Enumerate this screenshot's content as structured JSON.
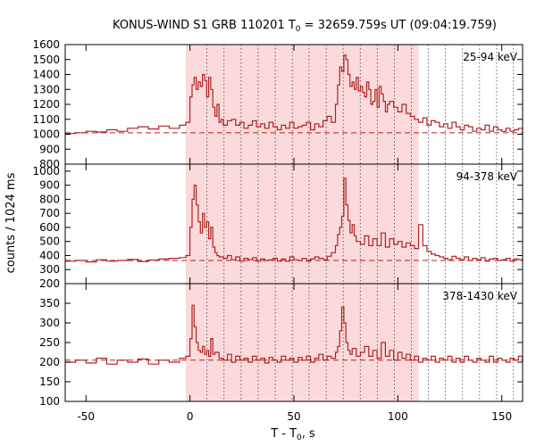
{
  "chart_data": {
    "type": "line",
    "title": {
      "prefix": "KONUS-WIND S1 GRB 110201 T",
      "sub": "0",
      "suffix": " = 32659.759s UT (09:04:19.759)"
    },
    "xlabel": {
      "main": "T - T",
      "sub": "0",
      "tail": ", s"
    },
    "ylabel": "counts / 1024 ms",
    "xlim": [
      -60,
      160
    ],
    "x_ticks": [
      -50,
      0,
      50,
      100,
      150
    ],
    "shaded_interval": [
      -2,
      110
    ],
    "vertical_dotted_lines": [
      8.2,
      16.4,
      24.6,
      32.8,
      41.0,
      49.2,
      57.3,
      65.5,
      73.7,
      81.9,
      90.1,
      98.3,
      106.5,
      114.7,
      122.9,
      131.1,
      139.3,
      147.5,
      155.6
    ],
    "colors": {
      "data": "#b22222",
      "shade": "#fadada",
      "background_level": "#b22222"
    },
    "panels": [
      {
        "name": "25-94 keV",
        "ylim": [
          800,
          1600
        ],
        "yticks": [
          800,
          900,
          1000,
          1100,
          1200,
          1300,
          1400,
          1500,
          1600
        ],
        "background": 1010,
        "x": [
          -60,
          -55,
          -50,
          -45,
          -40,
          -35,
          -30,
          -25,
          -20,
          -15,
          -10,
          -5,
          -2,
          0,
          1,
          2,
          3,
          4,
          5,
          6,
          7,
          8,
          9,
          10,
          11,
          12,
          13,
          14,
          15,
          16,
          18,
          20,
          22,
          24,
          26,
          28,
          30,
          32,
          34,
          36,
          38,
          40,
          42,
          44,
          46,
          48,
          50,
          52,
          54,
          56,
          58,
          60,
          62,
          64,
          66,
          68,
          70,
          71,
          72,
          73,
          74,
          75,
          76,
          77,
          78,
          79,
          80,
          81,
          82,
          83,
          84,
          85,
          86,
          87,
          88,
          89,
          90,
          91,
          92,
          93,
          94,
          95,
          96,
          98,
          100,
          102,
          104,
          106,
          108,
          110,
          112,
          114,
          116,
          118,
          120,
          122,
          124,
          126,
          128,
          130,
          132,
          134,
          136,
          138,
          140,
          142,
          144,
          146,
          148,
          150,
          152,
          154,
          156,
          158,
          160
        ],
        "values": [
          1005,
          1010,
          1020,
          1015,
          1030,
          1020,
          1040,
          1050,
          1035,
          1055,
          1040,
          1060,
          1080,
          1250,
          1330,
          1380,
          1300,
          1350,
          1320,
          1400,
          1360,
          1250,
          1380,
          1300,
          1180,
          1120,
          1200,
          1080,
          1100,
          1060,
          1090,
          1100,
          1060,
          1080,
          1040,
          1060,
          1090,
          1050,
          1070,
          1040,
          1080,
          1050,
          1030,
          1060,
          1040,
          1080,
          1040,
          1050,
          1060,
          1080,
          1030,
          1070,
          1050,
          1090,
          1120,
          1080,
          1200,
          1330,
          1450,
          1420,
          1530,
          1500,
          1400,
          1320,
          1350,
          1300,
          1380,
          1290,
          1320,
          1280,
          1250,
          1350,
          1300,
          1200,
          1220,
          1300,
          1180,
          1320,
          1270,
          1220,
          1150,
          1200,
          1220,
          1180,
          1150,
          1200,
          1140,
          1120,
          1100,
          1080,
          1110,
          1060,
          1090,
          1080,
          1050,
          1070,
          1040,
          1080,
          1050,
          1030,
          1060,
          1050,
          1020,
          1040,
          1030,
          1060,
          1020,
          1050,
          1030,
          1020,
          1040,
          1020,
          1030,
          1040,
          1020
        ]
      },
      {
        "name": "94-378 keV",
        "ylim": [
          200,
          1050
        ],
        "yticks": [
          200,
          300,
          400,
          500,
          600,
          700,
          800,
          900,
          1000
        ],
        "background": 365,
        "x": [
          -60,
          -55,
          -50,
          -45,
          -40,
          -35,
          -30,
          -25,
          -20,
          -15,
          -10,
          -5,
          -2,
          0,
          1,
          2,
          3,
          4,
          5,
          6,
          7,
          8,
          9,
          10,
          11,
          12,
          13,
          14,
          16,
          18,
          20,
          22,
          24,
          26,
          28,
          30,
          32,
          34,
          36,
          38,
          40,
          42,
          44,
          46,
          48,
          50,
          52,
          54,
          56,
          58,
          60,
          62,
          64,
          66,
          68,
          70,
          71,
          72,
          73,
          74,
          75,
          76,
          77,
          78,
          79,
          80,
          82,
          84,
          86,
          88,
          90,
          92,
          94,
          96,
          98,
          100,
          102,
          104,
          106,
          108,
          110,
          112,
          114,
          116,
          118,
          120,
          122,
          124,
          126,
          128,
          130,
          132,
          134,
          136,
          138,
          140,
          142,
          144,
          146,
          148,
          150,
          152,
          154,
          156,
          158,
          160
        ],
        "values": [
          360,
          365,
          355,
          370,
          360,
          365,
          372,
          358,
          368,
          375,
          380,
          385,
          400,
          600,
          800,
          900,
          760,
          640,
          560,
          700,
          600,
          640,
          520,
          600,
          460,
          420,
          400,
          390,
          380,
          400,
          370,
          390,
          360,
          380,
          370,
          385,
          360,
          375,
          365,
          370,
          380,
          360,
          375,
          360,
          390,
          370,
          365,
          380,
          360,
          375,
          390,
          380,
          370,
          395,
          420,
          470,
          550,
          600,
          680,
          950,
          760,
          650,
          560,
          620,
          540,
          500,
          480,
          540,
          470,
          520,
          470,
          560,
          460,
          520,
          480,
          500,
          460,
          490,
          470,
          450,
          620,
          470,
          430,
          410,
          400,
          390,
          380,
          370,
          395,
          380,
          370,
          390,
          365,
          380,
          370,
          385,
          360,
          375,
          380,
          365,
          370,
          380,
          360,
          375,
          370,
          365
        ]
      },
      {
        "name": "378-1430 keV",
        "ylim": [
          100,
          400
        ],
        "yticks": [
          100,
          150,
          200,
          250,
          300,
          350
        ],
        "background": 205,
        "x": [
          -60,
          -55,
          -50,
          -45,
          -40,
          -35,
          -30,
          -25,
          -20,
          -15,
          -10,
          -5,
          -2,
          0,
          1,
          2,
          3,
          4,
          5,
          6,
          7,
          8,
          9,
          10,
          11,
          12,
          14,
          16,
          18,
          20,
          22,
          24,
          26,
          28,
          30,
          32,
          34,
          36,
          38,
          40,
          42,
          44,
          46,
          48,
          50,
          52,
          54,
          56,
          58,
          60,
          62,
          64,
          66,
          68,
          70,
          71,
          72,
          73,
          74,
          75,
          76,
          77,
          78,
          80,
          82,
          84,
          86,
          88,
          90,
          92,
          94,
          96,
          98,
          100,
          102,
          104,
          106,
          108,
          110,
          112,
          114,
          116,
          118,
          120,
          122,
          124,
          126,
          128,
          130,
          132,
          134,
          136,
          138,
          140,
          142,
          144,
          146,
          148,
          150,
          152,
          154,
          156,
          158,
          160
        ],
        "values": [
          200,
          205,
          198,
          210,
          195,
          205,
          200,
          208,
          195,
          205,
          200,
          210,
          215,
          260,
          345,
          290,
          250,
          230,
          225,
          240,
          220,
          230,
          215,
          260,
          220,
          225,
          210,
          205,
          220,
          200,
          215,
          205,
          210,
          200,
          215,
          205,
          210,
          198,
          212,
          205,
          200,
          215,
          205,
          210,
          200,
          212,
          205,
          215,
          200,
          210,
          220,
          205,
          215,
          210,
          225,
          240,
          280,
          340,
          300,
          250,
          230,
          220,
          235,
          215,
          225,
          240,
          215,
          230,
          210,
          250,
          215,
          230,
          205,
          225,
          210,
          220,
          205,
          215,
          200,
          210,
          205,
          215,
          200,
          210,
          205,
          215,
          200,
          210,
          200,
          215,
          205,
          200,
          210,
          205,
          200,
          215,
          200,
          210,
          205,
          200,
          210,
          205,
          215,
          200
        ]
      }
    ]
  }
}
